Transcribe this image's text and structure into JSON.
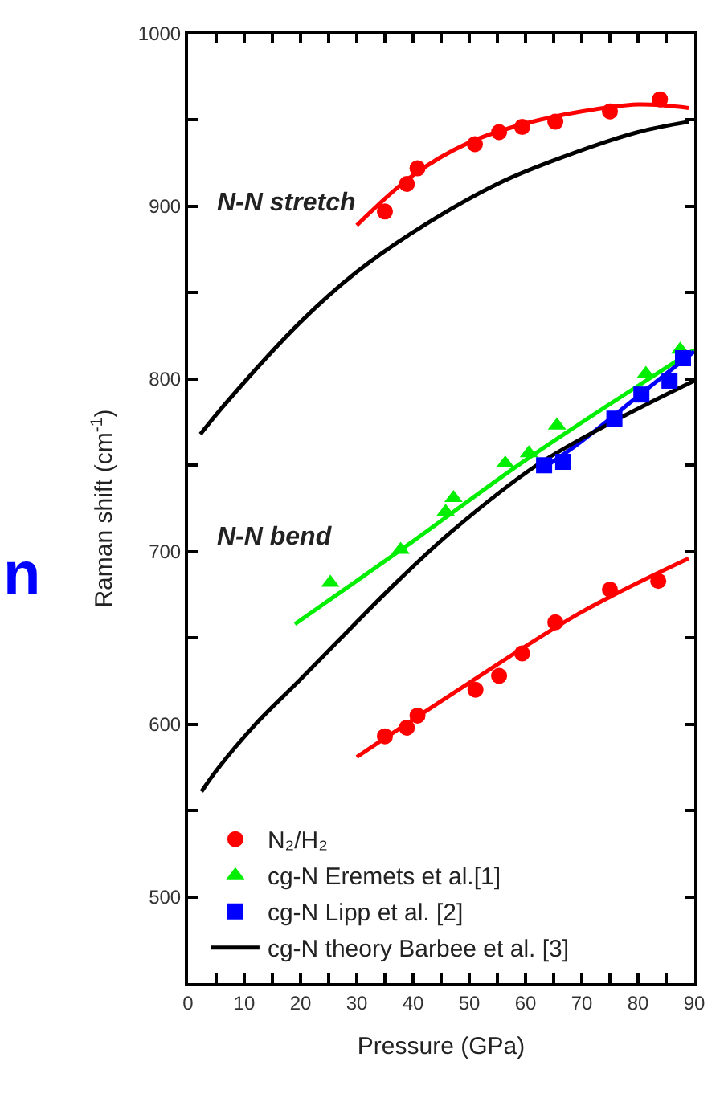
{
  "chart_data": {
    "type": "scatter",
    "xlabel": "Pressure (GPa)",
    "ylabel": "Raman shift (cm$^{-1}$)",
    "xlim": [
      0,
      90
    ],
    "ylim": [
      450,
      1000
    ],
    "xticks": [
      0,
      {
        "value": 5,
        "label": null
      },
      10,
      {
        "value": 15,
        "label": null
      },
      20,
      {
        "value": 25,
        "label": null
      },
      30,
      {
        "value": 35,
        "label": null
      },
      40,
      {
        "value": 45,
        "label": null
      },
      50,
      {
        "value": 55,
        "label": null
      },
      60,
      {
        "value": 65,
        "label": null
      },
      70,
      {
        "value": 75,
        "label": null
      },
      80,
      {
        "value": 85,
        "label": null
      },
      90
    ],
    "yticks": [
      500,
      {
        "value": 550,
        "label": null
      },
      600,
      {
        "value": 650,
        "label": null
      },
      700,
      {
        "value": 750,
        "label": null
      },
      800,
      {
        "value": 850,
        "label": null
      },
      900,
      {
        "value": 950,
        "label": null
      },
      1000
    ],
    "legend": "bottom left",
    "annotations": [
      "N-N stretch",
      "N-N bend",
      "n"
    ],
    "series": [
      {
        "type": "line",
        "color": "#ff0000",
        "marker": "none",
        "x": [
          30,
          40,
          50,
          60,
          70,
          80,
          89
        ],
        "values": [
          889,
          918,
          937,
          948,
          955,
          959,
          957
        ]
      },
      {
        "type": "line",
        "color": "#ff0000",
        "marker": "none",
        "x": [
          30,
          50,
          70,
          89
        ],
        "values": [
          581,
          624,
          665,
          696
        ]
      },
      {
        "type": "line",
        "color": "#00ee00",
        "marker": "none",
        "x": [
          19,
          40,
          60,
          90
        ],
        "values": [
          658,
          706,
          753,
          817
        ]
      },
      {
        "type": "line",
        "color": "#0000ff",
        "marker": "none",
        "x": [
          63,
          70,
          80,
          90
        ],
        "values": [
          748,
          764,
          790,
          816
        ]
      },
      {
        "type": "line",
        "color": "#000000",
        "marker": "none",
        "x": [
          2.2,
          7,
          20,
          30,
          40,
          55,
          67,
          80,
          89
        ],
        "values": [
          768,
          787,
          833,
          862,
          885,
          913,
          929,
          943,
          949
        ]
      },
      {
        "name": "cg-N theory Barbee et al. [3]",
        "type": "line",
        "color": "#000000",
        "marker": "none",
        "x": [
          2.4,
          5,
          12,
          20,
          37,
          47,
          62,
          76,
          90
        ],
        "values": [
          561,
          573,
          600,
          626,
          682,
          712,
          750,
          776,
          799
        ]
      },
      {
        "name": "N₂/H₂",
        "color": "#ff0000",
        "marker": "circle",
        "x": [
          35,
          38.9,
          40.8,
          51,
          55.3,
          59.4,
          65.3,
          75,
          83.9
        ],
        "values": [
          897,
          913,
          922,
          936,
          943,
          946,
          949,
          955,
          962
        ]
      },
      {
        "color": "#ff0000",
        "marker": "circle",
        "x": [
          35,
          38.9,
          40.8,
          51.1,
          55.3,
          59.4,
          65.3,
          75,
          83.6
        ],
        "values": [
          593,
          598,
          605,
          620,
          628,
          641,
          659,
          678,
          683
        ]
      },
      {
        "name": "cg-N Eremets et al.[1]",
        "color": "#00ee00",
        "marker": "triangle",
        "x": [
          25.3,
          37.8,
          45.8,
          47.2,
          56.4,
          60.6,
          65.6,
          81.4,
          87.5
        ],
        "values": [
          682,
          701,
          723,
          731,
          751,
          757,
          773,
          803,
          817
        ]
      },
      {
        "name": "cg-N Lipp et al. [2]",
        "color": "#0000ff",
        "marker": "square",
        "x": [
          63.3,
          66.7,
          75.8,
          80.6,
          85.6,
          88
        ],
        "values": [
          750,
          752,
          777,
          791,
          799,
          812
        ]
      }
    ]
  }
}
